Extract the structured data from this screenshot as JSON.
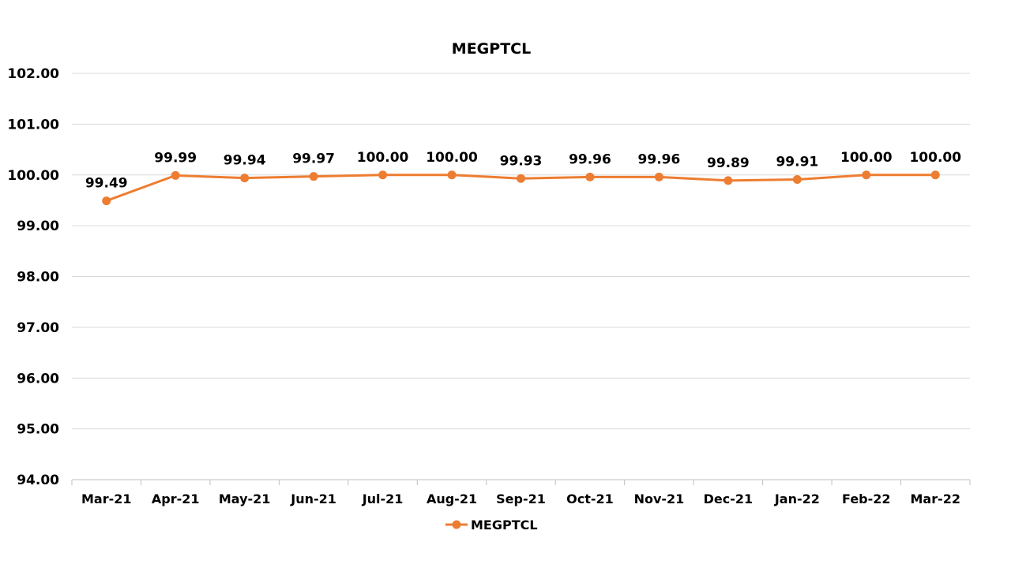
{
  "chart_data": {
    "type": "line",
    "title": "MEGPTCL",
    "xlabel": "",
    "ylabel": "",
    "categories": [
      "Mar-21",
      "Apr-21",
      "May-21",
      "Jun-21",
      "Jul-21",
      "Aug-21",
      "Sep-21",
      "Oct-21",
      "Nov-21",
      "Dec-21",
      "Jan-22",
      "Feb-22",
      "Mar-22"
    ],
    "series": [
      {
        "name": "MEGPTCL",
        "color": "#ED7D31",
        "values": [
          99.49,
          99.99,
          99.94,
          99.97,
          100.0,
          100.0,
          99.93,
          99.96,
          99.96,
          99.89,
          99.91,
          100.0,
          100.0
        ],
        "labels": [
          "99.49",
          "99.99",
          "99.94",
          "99.97",
          "100.00",
          "100.00",
          "99.93",
          "99.96",
          "99.96",
          "99.89",
          "99.91",
          "100.00",
          "100.00"
        ]
      }
    ],
    "ylim": [
      94,
      102
    ],
    "yticks": [
      "94.00",
      "95.00",
      "96.00",
      "97.00",
      "98.00",
      "99.00",
      "100.00",
      "101.00",
      "102.00"
    ],
    "grid": true,
    "legend_position": "bottom"
  }
}
